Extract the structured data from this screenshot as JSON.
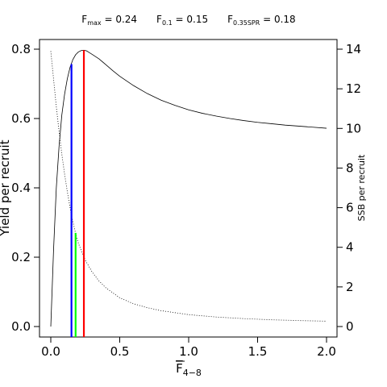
{
  "chart_data": {
    "type": "line",
    "header": [
      {
        "main": "F",
        "sub": "max",
        "value": "= 0.24"
      },
      {
        "main": "F",
        "sub": "0.1",
        "value": "= 0.15"
      },
      {
        "main": "F",
        "sub": "0.35SPR",
        "value": "= 0.18"
      }
    ],
    "xlabel": {
      "main": "F",
      "sub": "4−8",
      "overline": true
    },
    "ylabel_left": "Yield per recruit",
    "ylabel_right": "SSB per recruit",
    "xlim": [
      0,
      2.0
    ],
    "ylim_left": [
      0,
      0.8
    ],
    "ylim_right": [
      0,
      14
    ],
    "x_ticks": [
      0.0,
      0.5,
      1.0,
      1.5,
      2.0
    ],
    "x_tick_labels": [
      "0.0",
      "0.5",
      "1.0",
      "1.5",
      "2.0"
    ],
    "y_left_ticks": [
      0.0,
      0.2,
      0.4,
      0.6,
      0.8
    ],
    "y_left_tick_labels": [
      "0.0",
      "0.2",
      "0.4",
      "0.6",
      "0.8"
    ],
    "y_right_ticks": [
      0,
      2,
      4,
      6,
      8,
      10,
      12,
      14
    ],
    "y_right_tick_labels": [
      "0",
      "2",
      "4",
      "6",
      "8",
      "10",
      "12",
      "14"
    ],
    "grid": false,
    "series": [
      {
        "style": "solid",
        "axis": "left",
        "color": "#000000",
        "x": [
          0,
          0.02,
          0.04,
          0.06,
          0.08,
          0.1,
          0.12,
          0.14,
          0.16,
          0.18,
          0.2,
          0.22,
          0.24,
          0.26,
          0.28,
          0.3,
          0.35,
          0.4,
          0.45,
          0.5,
          0.6,
          0.7,
          0.8,
          0.9,
          1.0,
          1.1,
          1.2,
          1.3,
          1.4,
          1.5,
          1.6,
          1.7,
          1.8,
          1.9,
          2.0
        ],
        "y": [
          0,
          0.22,
          0.4,
          0.52,
          0.61,
          0.67,
          0.715,
          0.748,
          0.77,
          0.784,
          0.792,
          0.796,
          0.797,
          0.795,
          0.79,
          0.785,
          0.772,
          0.755,
          0.738,
          0.722,
          0.695,
          0.672,
          0.653,
          0.638,
          0.625,
          0.615,
          0.607,
          0.6,
          0.594,
          0.589,
          0.585,
          0.581,
          0.578,
          0.575,
          0.572
        ]
      },
      {
        "style": "dotted",
        "axis": "right",
        "color": "#000000",
        "x": [
          0,
          0.02,
          0.04,
          0.06,
          0.08,
          0.1,
          0.12,
          0.15,
          0.18,
          0.2,
          0.25,
          0.3,
          0.35,
          0.4,
          0.5,
          0.6,
          0.7,
          0.8,
          1.0,
          1.2,
          1.4,
          1.6,
          1.8,
          2.0
        ],
        "y": [
          13.9,
          12.5,
          11.1,
          9.85,
          8.7,
          7.7,
          6.8,
          5.6,
          4.7,
          4.2,
          3.35,
          2.75,
          2.3,
          1.95,
          1.45,
          1.15,
          0.95,
          0.8,
          0.6,
          0.48,
          0.4,
          0.34,
          0.3,
          0.27
        ]
      }
    ],
    "reference_lines": [
      {
        "label": "F0.1",
        "x": 0.15,
        "y_top": 0.757,
        "color": "#0000ff"
      },
      {
        "label": "F0.35SPR",
        "x": 0.18,
        "y_top": 0.27,
        "color": "#00ff00"
      },
      {
        "label": "Fmax",
        "x": 0.24,
        "y_top": 0.797,
        "color": "#ff0000"
      }
    ]
  }
}
